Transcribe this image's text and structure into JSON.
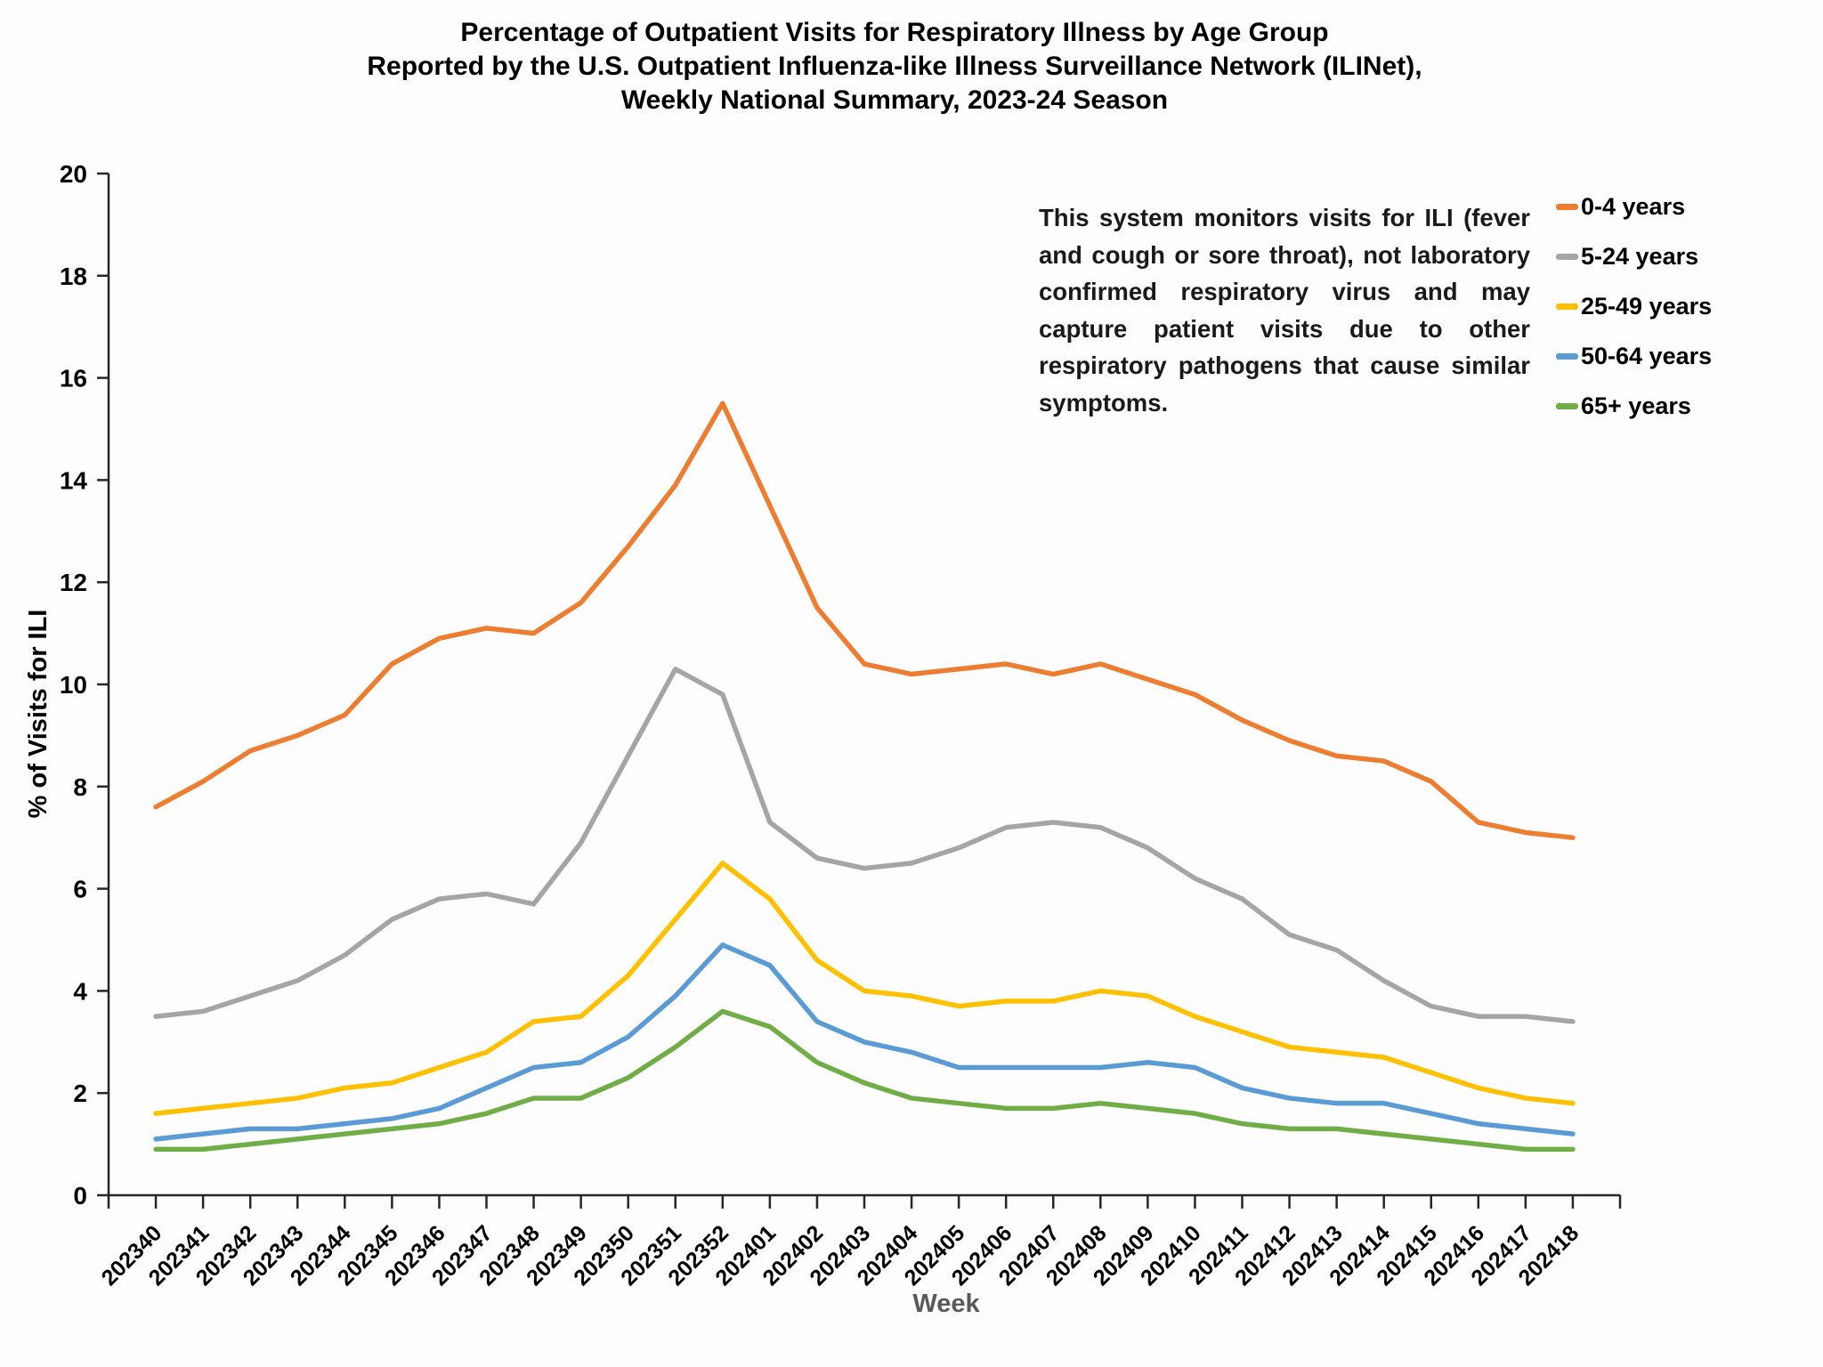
{
  "title": {
    "line1": "Percentage of Outpatient Visits for Respiratory Illness by Age Group",
    "line2": "Reported by the U.S. Outpatient Influenza-like Illness Surveillance Network (ILINet),",
    "line3": "Weekly National Summary, 2023-24 Season"
  },
  "annotation": "This system monitors visits for ILI (fever and cough or sore throat), not laboratory confirmed respiratory virus and may capture patient visits due to other respiratory pathogens that cause similar symptoms.",
  "chart_data": {
    "type": "line",
    "title": "Percentage of Outpatient Visits for Respiratory Illness by Age Group Reported by the U.S. Outpatient Influenza-like Illness Surveillance Network (ILINet), Weekly National Summary, 2023-24 Season",
    "xlabel": "Week",
    "ylabel": "% of Visits for ILI",
    "ylim": [
      0,
      20
    ],
    "ytick_step": 2,
    "grid": false,
    "legend_position": "right",
    "categories": [
      "202340",
      "202341",
      "202342",
      "202343",
      "202344",
      "202345",
      "202346",
      "202347",
      "202348",
      "202349",
      "202350",
      "202351",
      "202352",
      "202401",
      "202402",
      "202403",
      "202404",
      "202405",
      "202406",
      "202407",
      "202408",
      "202409",
      "202410",
      "202411",
      "202412",
      "202413",
      "202414",
      "202415",
      "202416",
      "202417",
      "202418"
    ],
    "series": [
      {
        "name": "0-4 years",
        "color": "#ED7D31",
        "values": [
          7.6,
          8.1,
          8.7,
          9.0,
          9.4,
          10.4,
          10.9,
          11.1,
          11.0,
          11.6,
          12.7,
          13.9,
          15.5,
          13.5,
          11.5,
          10.4,
          10.2,
          10.3,
          10.4,
          10.2,
          10.4,
          10.1,
          9.8,
          9.3,
          8.9,
          8.6,
          8.5,
          8.1,
          7.3,
          7.1,
          7.0
        ]
      },
      {
        "name": "5-24 years",
        "color": "#A5A5A5",
        "values": [
          3.5,
          3.6,
          3.9,
          4.2,
          4.7,
          5.4,
          5.8,
          5.9,
          5.7,
          6.9,
          8.6,
          10.3,
          9.8,
          7.3,
          6.6,
          6.4,
          6.5,
          6.8,
          7.2,
          7.3,
          7.2,
          6.8,
          6.2,
          5.8,
          5.1,
          4.8,
          4.2,
          3.7,
          3.5,
          3.5,
          3.4
        ]
      },
      {
        "name": "25-49 years",
        "color": "#FFC000",
        "values": [
          1.6,
          1.7,
          1.8,
          1.9,
          2.1,
          2.2,
          2.5,
          2.8,
          3.4,
          3.5,
          4.3,
          5.4,
          6.5,
          5.8,
          4.6,
          4.0,
          3.9,
          3.7,
          3.8,
          3.8,
          4.0,
          3.9,
          3.5,
          3.2,
          2.9,
          2.8,
          2.7,
          2.4,
          2.1,
          1.9,
          1.8
        ]
      },
      {
        "name": "50-64 years",
        "color": "#5B9BD5",
        "values": [
          1.1,
          1.2,
          1.3,
          1.3,
          1.4,
          1.5,
          1.7,
          2.1,
          2.5,
          2.6,
          3.1,
          3.9,
          4.9,
          4.5,
          3.4,
          3.0,
          2.8,
          2.5,
          2.5,
          2.5,
          2.5,
          2.6,
          2.5,
          2.1,
          1.9,
          1.8,
          1.8,
          1.6,
          1.4,
          1.3,
          1.2
        ]
      },
      {
        "name": "65+ years",
        "color": "#70AD47",
        "values": [
          0.9,
          0.9,
          1.0,
          1.1,
          1.2,
          1.3,
          1.4,
          1.6,
          1.9,
          1.9,
          2.3,
          2.9,
          3.6,
          3.3,
          2.6,
          2.2,
          1.9,
          1.8,
          1.7,
          1.7,
          1.8,
          1.7,
          1.6,
          1.4,
          1.3,
          1.3,
          1.2,
          1.1,
          1.0,
          0.9,
          0.9
        ]
      }
    ]
  },
  "colors": {
    "axis": "#262626",
    "tick_label": "#000000",
    "x_axis_title": "#595959"
  }
}
